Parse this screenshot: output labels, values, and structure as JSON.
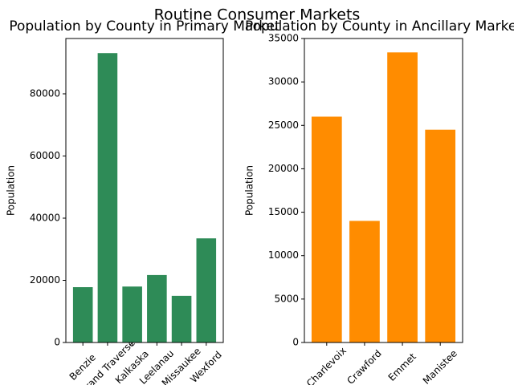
{
  "title": "Routine Consumer Markets",
  "chart_data": [
    {
      "type": "bar",
      "title": "Population by County in Primary Market",
      "ylabel": "Population",
      "categories": [
        "Benzie",
        "Grand Traverse",
        "Kalkaska",
        "Leelanau",
        "Missaukee",
        "Wexford"
      ],
      "values": [
        17800,
        93100,
        18000,
        21700,
        15000,
        33500
      ],
      "color": "#2e8b57",
      "ylim": [
        0,
        97800
      ],
      "yticks": [
        0,
        20000,
        40000,
        60000,
        80000
      ],
      "grid": false
    },
    {
      "type": "bar",
      "title": "Population by County in Ancillary Market",
      "ylabel": "Population",
      "categories": [
        "Charlevoix",
        "Crawford",
        "Emmet",
        "Manistee"
      ],
      "values": [
        26000,
        14000,
        33400,
        24500
      ],
      "color": "#ff8c00",
      "ylim": [
        0,
        35000
      ],
      "yticks": [
        0,
        5000,
        10000,
        15000,
        20000,
        25000,
        30000,
        35000
      ],
      "grid": false
    }
  ]
}
